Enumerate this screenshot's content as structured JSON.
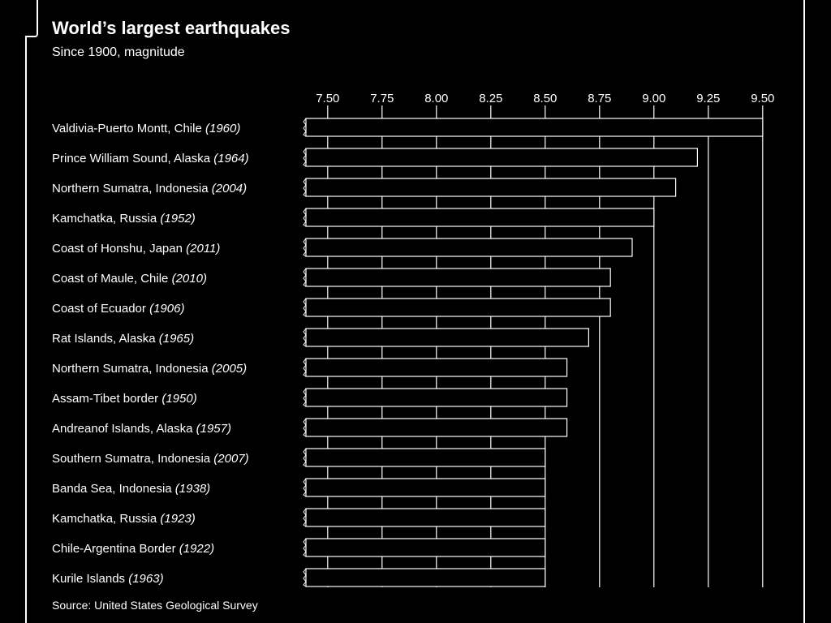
{
  "header": {
    "title": "World’s largest earthquakes",
    "subtitle": "Since 1900, magnitude"
  },
  "footer": {
    "source": "Source: United States Geological Survey"
  },
  "colors": {
    "background": "#000000",
    "foreground": "#ffffff"
  },
  "chart_data": {
    "type": "bar",
    "orientation": "horizontal",
    "title": "World’s largest earthquakes",
    "subtitle": "Since 1900, magnitude",
    "xlim": [
      7.4,
      9.6
    ],
    "xticks": [
      "7.50",
      "7.75",
      "8.00",
      "8.25",
      "8.50",
      "8.75",
      "9.00",
      "9.25",
      "9.50"
    ],
    "xtick_values": [
      7.5,
      7.75,
      8.0,
      8.25,
      8.5,
      8.75,
      9.0,
      9.25,
      9.5
    ],
    "grid": true,
    "axis_position": "top",
    "categories": [
      {
        "place": "Valdivia-Puerto Montt, Chile",
        "year": "(1960)"
      },
      {
        "place": "Prince William Sound, Alaska",
        "year": "(1964)"
      },
      {
        "place": "Northern Sumatra, Indonesia",
        "year": "(2004)"
      },
      {
        "place": "Kamchatka, Russia",
        "year": "(1952)"
      },
      {
        "place": "Coast of Honshu, Japan",
        "year": "(2011)"
      },
      {
        "place": "Coast of Maule, Chile",
        "year": "(2010)"
      },
      {
        "place": "Coast of Ecuador",
        "year": "(1906)"
      },
      {
        "place": "Rat Islands, Alaska",
        "year": "(1965)"
      },
      {
        "place": "Northern Sumatra, Indonesia",
        "year": "(2005)"
      },
      {
        "place": "Assam-Tibet border",
        "year": "(1950)"
      },
      {
        "place": "Andreanof Islands, Alaska",
        "year": "(1957)"
      },
      {
        "place": "Southern Sumatra, Indonesia",
        "year": "(2007)"
      },
      {
        "place": "Banda Sea, Indonesia",
        "year": "(1938)"
      },
      {
        "place": "Kamchatka, Russia",
        "year": "(1923)"
      },
      {
        "place": "Chile-Argentina Border",
        "year": "(1922)"
      },
      {
        "place": "Kurile Islands",
        "year": "(1963)"
      }
    ],
    "values": [
      9.5,
      9.2,
      9.1,
      9.0,
      8.9,
      8.8,
      8.8,
      8.7,
      8.6,
      8.6,
      8.6,
      8.5,
      8.5,
      8.5,
      8.5,
      8.5
    ]
  }
}
